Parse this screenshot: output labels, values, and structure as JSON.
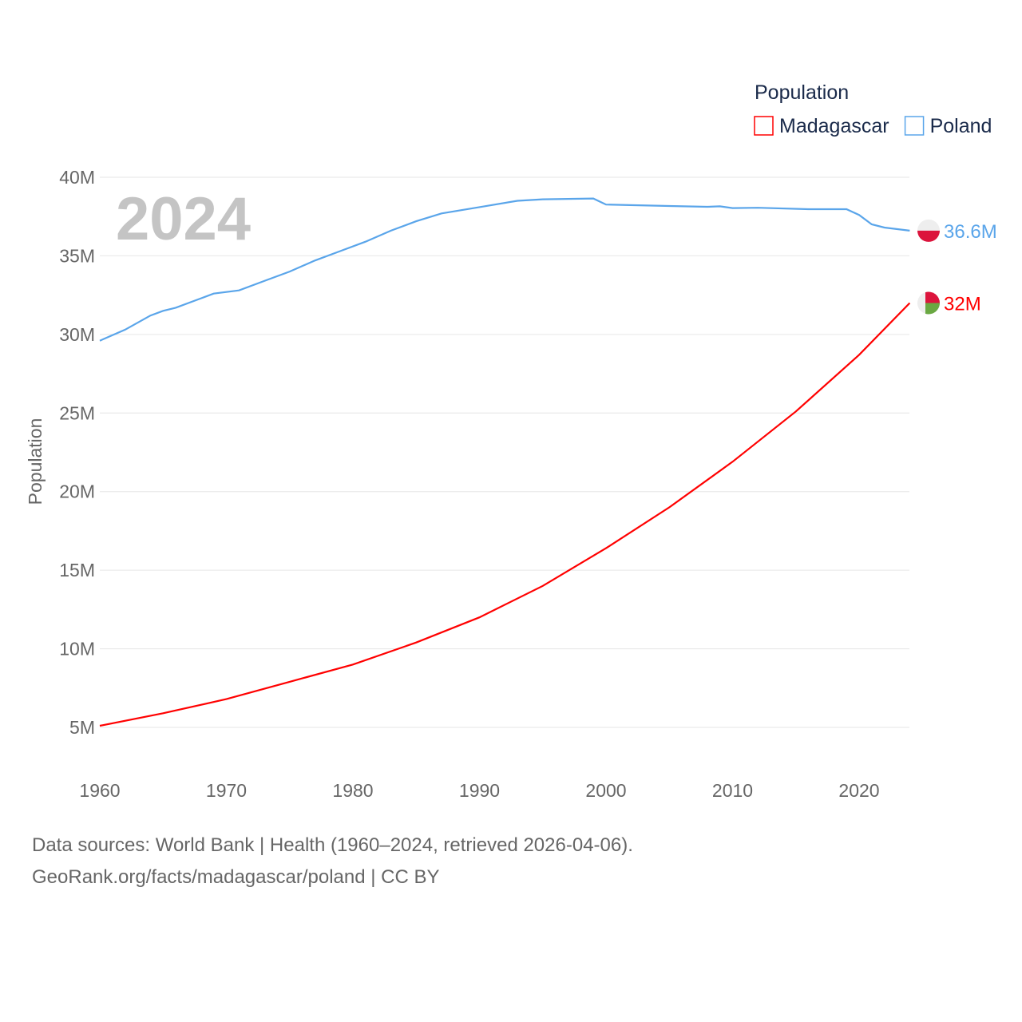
{
  "chart_data": {
    "type": "line",
    "title": "Population",
    "year_label": "2024",
    "ylabel": "Population",
    "xlabel": "",
    "xlim": [
      1960,
      2024
    ],
    "ylim": [
      5,
      40
    ],
    "x_ticks": [
      1960,
      1970,
      1980,
      1990,
      2000,
      2010,
      2020
    ],
    "y_ticks": [
      {
        "v": 5,
        "label": "5M"
      },
      {
        "v": 10,
        "label": "10M"
      },
      {
        "v": 15,
        "label": "15M"
      },
      {
        "v": 20,
        "label": "20M"
      },
      {
        "v": 25,
        "label": "25M"
      },
      {
        "v": 30,
        "label": "30M"
      },
      {
        "v": 35,
        "label": "35M"
      },
      {
        "v": 40,
        "label": "40M"
      }
    ],
    "legend": {
      "title": "Population",
      "placement": "top-right"
    },
    "series": [
      {
        "name": "Madagascar",
        "color": "#ff0000",
        "end_label": "32M",
        "points": [
          [
            1960,
            5.1
          ],
          [
            1965,
            5.9
          ],
          [
            1970,
            6.8
          ],
          [
            1975,
            7.9
          ],
          [
            1980,
            9.0
          ],
          [
            1985,
            10.4
          ],
          [
            1990,
            12.0
          ],
          [
            1995,
            14.0
          ],
          [
            2000,
            16.4
          ],
          [
            2005,
            19.0
          ],
          [
            2010,
            21.9
          ],
          [
            2015,
            25.1
          ],
          [
            2020,
            28.7
          ],
          [
            2024,
            32.0
          ]
        ]
      },
      {
        "name": "Poland",
        "color": "#5aa5ea",
        "end_label": "36.6M",
        "points": [
          [
            1960,
            29.6
          ],
          [
            1962,
            30.3
          ],
          [
            1964,
            31.2
          ],
          [
            1965,
            31.5
          ],
          [
            1966,
            31.7
          ],
          [
            1968,
            32.3
          ],
          [
            1969,
            32.6
          ],
          [
            1971,
            32.8
          ],
          [
            1973,
            33.4
          ],
          [
            1975,
            34.0
          ],
          [
            1977,
            34.7
          ],
          [
            1979,
            35.3
          ],
          [
            1981,
            35.9
          ],
          [
            1983,
            36.6
          ],
          [
            1985,
            37.2
          ],
          [
            1987,
            37.7
          ],
          [
            1990,
            38.1
          ],
          [
            1993,
            38.5
          ],
          [
            1995,
            38.6
          ],
          [
            1999,
            38.65
          ],
          [
            2000,
            38.26
          ],
          [
            2005,
            38.17
          ],
          [
            2008,
            38.12
          ],
          [
            2009,
            38.15
          ],
          [
            2010,
            38.04
          ],
          [
            2012,
            38.06
          ],
          [
            2016,
            37.97
          ],
          [
            2019,
            37.97
          ],
          [
            2020,
            37.6
          ],
          [
            2021,
            37.0
          ],
          [
            2022,
            36.8
          ],
          [
            2024,
            36.6
          ]
        ]
      }
    ]
  },
  "footer": {
    "line1": "Data sources: World Bank | Health (1960–2024, retrieved 2026-04-06).",
    "line2": "GeoRank.org/facts/madagascar/poland | CC BY"
  }
}
